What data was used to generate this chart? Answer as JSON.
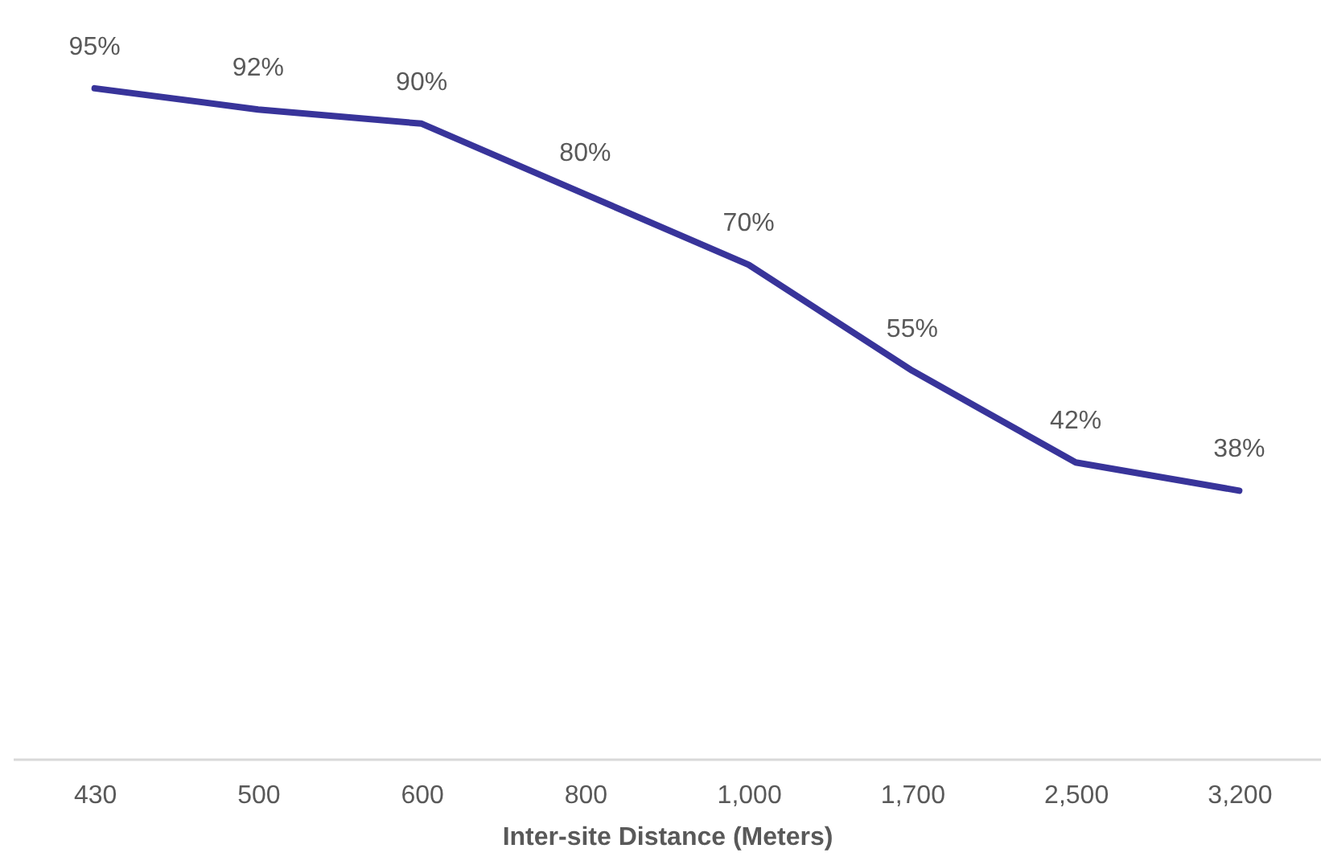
{
  "chart_data": {
    "type": "line",
    "xlabel": "Inter-site Distance (Meters)",
    "categories": [
      "430",
      "500",
      "600",
      "800",
      "1,000",
      "1,700",
      "2,500",
      "3,200"
    ],
    "series": [
      {
        "color": "#38349a",
        "values": [
          95,
          92,
          90,
          80,
          70,
          55,
          42,
          38
        ],
        "value_labels": [
          "95%",
          "92%",
          "90%",
          "80%",
          "70%",
          "55%",
          "42%",
          "38%"
        ]
      }
    ],
    "tick_labels": "x",
    "grid": false,
    "marker": "none",
    "line_style": "solid"
  }
}
